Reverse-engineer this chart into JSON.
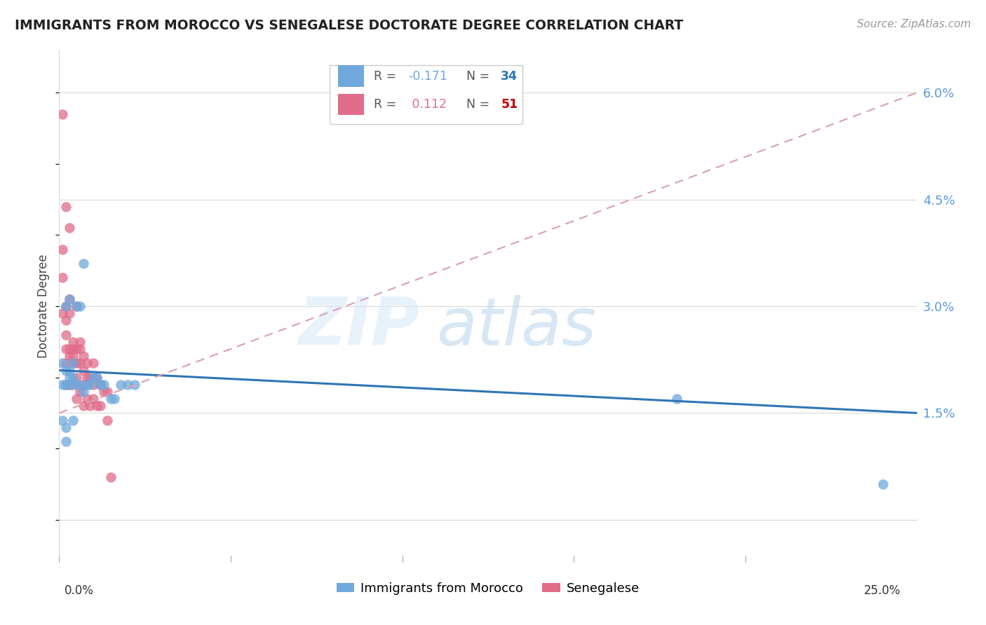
{
  "title": "IMMIGRANTS FROM MOROCCO VS SENEGALESE DOCTORATE DEGREE CORRELATION CHART",
  "source": "Source: ZipAtlas.com",
  "ylabel": "Doctorate Degree",
  "yticks": [
    0.0,
    0.015,
    0.03,
    0.045,
    0.06
  ],
  "ytick_labels": [
    "",
    "1.5%",
    "3.0%",
    "4.5%",
    "6.0%"
  ],
  "xmin": 0.0,
  "xmax": 0.25,
  "ymin": -0.006,
  "ymax": 0.066,
  "morocco_color": "#6fa8dc",
  "senegal_color": "#e06c8a",
  "morocco_R": -0.171,
  "morocco_N": 34,
  "senegal_R": 0.112,
  "senegal_N": 51,
  "morocco_scatter_x": [
    0.001,
    0.001,
    0.001,
    0.002,
    0.002,
    0.002,
    0.002,
    0.002,
    0.003,
    0.003,
    0.003,
    0.003,
    0.004,
    0.004,
    0.004,
    0.005,
    0.005,
    0.006,
    0.006,
    0.007,
    0.007,
    0.008,
    0.009,
    0.01,
    0.011,
    0.012,
    0.013,
    0.015,
    0.016,
    0.018,
    0.02,
    0.022,
    0.18,
    0.24
  ],
  "morocco_scatter_y": [
    0.022,
    0.019,
    0.014,
    0.03,
    0.021,
    0.019,
    0.013,
    0.011,
    0.031,
    0.021,
    0.02,
    0.019,
    0.022,
    0.02,
    0.014,
    0.03,
    0.019,
    0.03,
    0.019,
    0.036,
    0.018,
    0.019,
    0.019,
    0.02,
    0.02,
    0.019,
    0.019,
    0.017,
    0.017,
    0.019,
    0.019,
    0.019,
    0.017,
    0.005
  ],
  "senegal_scatter_x": [
    0.001,
    0.001,
    0.001,
    0.001,
    0.002,
    0.002,
    0.002,
    0.002,
    0.002,
    0.002,
    0.002,
    0.003,
    0.003,
    0.003,
    0.003,
    0.003,
    0.003,
    0.004,
    0.004,
    0.004,
    0.004,
    0.004,
    0.005,
    0.005,
    0.005,
    0.005,
    0.005,
    0.006,
    0.006,
    0.006,
    0.006,
    0.007,
    0.007,
    0.007,
    0.007,
    0.008,
    0.008,
    0.008,
    0.009,
    0.009,
    0.01,
    0.01,
    0.01,
    0.011,
    0.011,
    0.012,
    0.012,
    0.013,
    0.014,
    0.014,
    0.015
  ],
  "senegal_scatter_y": [
    0.057,
    0.038,
    0.034,
    0.029,
    0.044,
    0.03,
    0.028,
    0.026,
    0.024,
    0.022,
    0.019,
    0.041,
    0.031,
    0.029,
    0.024,
    0.023,
    0.019,
    0.025,
    0.024,
    0.023,
    0.022,
    0.019,
    0.03,
    0.024,
    0.022,
    0.02,
    0.017,
    0.025,
    0.024,
    0.022,
    0.018,
    0.023,
    0.021,
    0.019,
    0.016,
    0.022,
    0.02,
    0.017,
    0.02,
    0.016,
    0.022,
    0.019,
    0.017,
    0.02,
    0.016,
    0.019,
    0.016,
    0.018,
    0.018,
    0.014,
    0.006
  ],
  "watermark_zip": "ZIP",
  "watermark_atlas": "atlas",
  "background_color": "#ffffff",
  "grid_color": "#d9d9d9",
  "tick_label_color": "#5b9bd5",
  "trendline_morocco_color": "#2e75b6",
  "trendline_senegal_color": "#d9a0b0",
  "legend_box_color": "#f2f2f2",
  "legend_border_color": "#cccccc",
  "legend_R_label_color": "#555555",
  "legend_R_value_morocco": "#6fa8dc",
  "legend_R_value_senegal": "#e06c8a",
  "legend_N_value_morocco": "#2e75b6",
  "legend_N_value_senegal": "#c00000",
  "bottom_legend_morocco": "Immigrants from Morocco",
  "bottom_legend_senegal": "Senegalese"
}
